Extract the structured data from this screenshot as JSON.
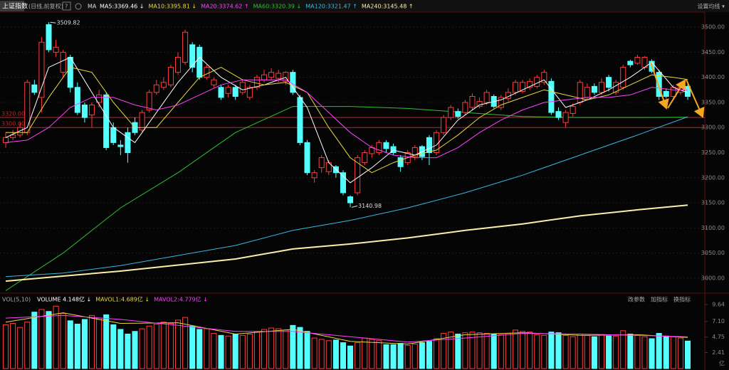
{
  "header": {
    "symbol": "上证指数",
    "period": "(日线,前复权)",
    "help": "?",
    "ma_label": "MA",
    "settings": "设置均线 ▾"
  },
  "chart_data": [
    {
      "type": "candlestick",
      "open": [
        3270,
        3280,
        3285,
        3290,
        3385,
        3360,
        3505,
        3450,
        3410,
        3440,
        3380,
        3345,
        3325,
        3350,
        3365,
        3300,
        3265,
        3290,
        3310,
        3295,
        3335,
        3370,
        3380,
        3385,
        3410,
        3430,
        3465,
        3460,
        3400,
        3385,
        3380,
        3368,
        3380,
        3370,
        3360,
        3380,
        3395,
        3400,
        3398,
        3392,
        3410,
        3360,
        3270,
        3200,
        3220,
        3212,
        3222,
        3210,
        3162,
        3170,
        3230,
        3248,
        3250,
        3270,
        3262,
        3240,
        3230,
        3242,
        3262,
        3280,
        3250,
        3290,
        3320,
        3332,
        3330,
        3340,
        3342,
        3350,
        3362,
        3340,
        3358,
        3370,
        3372,
        3380,
        3382,
        3390,
        3392,
        3332,
        3310,
        3328,
        3350,
        3360,
        3382,
        3370,
        3400,
        3370,
        3380,
        3432,
        3428,
        3420,
        3432,
        3410,
        3372,
        3362,
        3370,
        3382
      ],
      "high": [
        3290,
        3295,
        3310,
        3395,
        3395,
        3480,
        3509.82,
        3475,
        3455,
        3445,
        3390,
        3350,
        3350,
        3375,
        3370,
        3310,
        3275,
        3300,
        3320,
        3335,
        3375,
        3395,
        3400,
        3425,
        3450,
        3495,
        3470,
        3465,
        3425,
        3400,
        3385,
        3385,
        3385,
        3395,
        3385,
        3405,
        3415,
        3418,
        3415,
        3412,
        3415,
        3365,
        3275,
        3215,
        3245,
        3235,
        3225,
        3215,
        3165,
        3245,
        3255,
        3265,
        3275,
        3275,
        3268,
        3245,
        3255,
        3265,
        3265,
        3285,
        3295,
        3325,
        3345,
        3338,
        3355,
        3368,
        3360,
        3375,
        3366,
        3365,
        3378,
        3395,
        3395,
        3398,
        3405,
        3415,
        3398,
        3340,
        3335,
        3348,
        3395,
        3388,
        3388,
        3398,
        3405,
        3395,
        3425,
        3435,
        3445,
        3442,
        3436,
        3415,
        3378,
        3385,
        3388,
        3386
      ],
      "low": [
        3260,
        3275,
        3280,
        3285,
        3365,
        3330,
        3450,
        3440,
        3400,
        3370,
        3325,
        3310,
        3300,
        3340,
        3255,
        3265,
        3245,
        3230,
        3285,
        3290,
        3330,
        3365,
        3375,
        3380,
        3405,
        3425,
        3410,
        3395,
        3395,
        3380,
        3355,
        3360,
        3355,
        3365,
        3355,
        3375,
        3390,
        3395,
        3390,
        3385,
        3365,
        3265,
        3205,
        3190,
        3210,
        3205,
        3200,
        3165,
        3140.98,
        3165,
        3225,
        3240,
        3245,
        3250,
        3245,
        3212,
        3225,
        3235,
        3235,
        3225,
        3245,
        3285,
        3315,
        3318,
        3325,
        3335,
        3338,
        3345,
        3338,
        3335,
        3352,
        3365,
        3368,
        3375,
        3378,
        3385,
        3325,
        3315,
        3300,
        3322,
        3345,
        3355,
        3365,
        3365,
        3372,
        3365,
        3375,
        3420,
        3425,
        3415,
        3408,
        3355,
        3358,
        3356,
        3365,
        3355
      ],
      "close": [
        3280,
        3285,
        3300,
        3390,
        3370,
        3470,
        3455,
        3460,
        3450,
        3380,
        3330,
        3320,
        3345,
        3365,
        3260,
        3270,
        3262,
        3250,
        3290,
        3330,
        3370,
        3385,
        3390,
        3420,
        3440,
        3490,
        3420,
        3400,
        3420,
        3395,
        3360,
        3380,
        3362,
        3390,
        3380,
        3400,
        3405,
        3410,
        3408,
        3410,
        3370,
        3270,
        3210,
        3210,
        3240,
        3230,
        3210,
        3170,
        3150,
        3240,
        3250,
        3260,
        3270,
        3258,
        3250,
        3222,
        3250,
        3260,
        3242,
        3250,
        3290,
        3320,
        3340,
        3322,
        3350,
        3362,
        3352,
        3370,
        3342,
        3360,
        3370,
        3390,
        3390,
        3392,
        3400,
        3410,
        3330,
        3320,
        3330,
        3342,
        3390,
        3380,
        3370,
        3390,
        3380,
        3390,
        3420,
        3425,
        3440,
        3440,
        3412,
        3362,
        3362,
        3380,
        3380,
        3362
      ],
      "up_color": "#ff3c3c",
      "down_color": "#54ffff",
      "series": [
        {
          "name": "MA5:3369.46 ↓",
          "color": "#ffffff",
          "x": [
            0,
            3,
            6,
            9,
            12,
            15,
            18,
            21,
            24,
            27,
            30,
            33,
            36,
            39,
            42,
            45,
            48,
            51,
            54,
            57,
            60,
            63,
            66,
            69,
            72,
            75,
            78,
            81,
            84,
            87,
            90,
            93,
            95
          ],
          "values": [
            3280,
            3300,
            3420,
            3440,
            3370,
            3300,
            3270,
            3330,
            3390,
            3440,
            3400,
            3375,
            3385,
            3400,
            3340,
            3230,
            3190,
            3220,
            3255,
            3245,
            3265,
            3315,
            3345,
            3355,
            3375,
            3395,
            3340,
            3355,
            3375,
            3400,
            3430,
            3380,
            3369.46
          ]
        },
        {
          "name": "MA10:3395.81 ↓",
          "color": "#e8d840",
          "x": [
            0,
            3,
            6,
            9,
            12,
            15,
            18,
            21,
            24,
            27,
            30,
            33,
            36,
            39,
            42,
            45,
            48,
            51,
            54,
            57,
            60,
            63,
            66,
            69,
            72,
            75,
            78,
            81,
            84,
            87,
            90,
            93,
            95
          ],
          "values": [
            3290,
            3290,
            3360,
            3420,
            3410,
            3350,
            3300,
            3300,
            3350,
            3400,
            3420,
            3395,
            3385,
            3390,
            3370,
            3300,
            3240,
            3210,
            3230,
            3245,
            3255,
            3285,
            3320,
            3345,
            3360,
            3375,
            3365,
            3355,
            3365,
            3385,
            3405,
            3400,
            3395.81
          ]
        },
        {
          "name": "MA20:3374.62 ↑",
          "color": "#ff40ff",
          "x": [
            0,
            3,
            6,
            9,
            12,
            15,
            18,
            21,
            24,
            27,
            30,
            33,
            36,
            39,
            42,
            45,
            48,
            51,
            54,
            57,
            60,
            63,
            66,
            69,
            72,
            75,
            78,
            81,
            84,
            87,
            90,
            93,
            95
          ],
          "values": [
            3270,
            3275,
            3300,
            3340,
            3360,
            3360,
            3345,
            3335,
            3345,
            3365,
            3385,
            3395,
            3395,
            3395,
            3370,
            3330,
            3290,
            3260,
            3245,
            3240,
            3240,
            3260,
            3290,
            3315,
            3335,
            3350,
            3355,
            3360,
            3360,
            3365,
            3380,
            3375,
            3374.62
          ]
        },
        {
          "name": "MA60:3320.39 ↓",
          "color": "#30c030",
          "x": [
            0,
            8,
            16,
            24,
            32,
            40,
            48,
            56,
            64,
            72,
            80,
            88,
            95
          ],
          "values": [
            2975,
            3050,
            3140,
            3210,
            3290,
            3342,
            3342,
            3338,
            3330,
            3322,
            3320,
            3320,
            3320.39
          ]
        },
        {
          "name": "MA120:3321.47 ↑",
          "color": "#38b8e0",
          "x": [
            0,
            8,
            16,
            24,
            32,
            40,
            48,
            56,
            64,
            72,
            80,
            88,
            95
          ],
          "values": [
            3003,
            3010,
            3025,
            3045,
            3065,
            3095,
            3115,
            3140,
            3170,
            3205,
            3245,
            3285,
            3321.47
          ]
        },
        {
          "name": "MA240:3145.48 ↑",
          "color": "#f8f0a8",
          "x": [
            0,
            8,
            16,
            24,
            32,
            40,
            48,
            56,
            64,
            72,
            80,
            88,
            95
          ],
          "values": [
            2994,
            3004,
            3014,
            3026,
            3038,
            3058,
            3068,
            3080,
            3095,
            3108,
            3124,
            3136,
            3145.48
          ]
        }
      ],
      "levels": [
        {
          "value": 3320,
          "label": "3320.00"
        },
        {
          "value": 3300,
          "label": "3300.00"
        }
      ],
      "level_color": "#d02020",
      "ylim": [
        2970,
        3530
      ],
      "yticks": [
        {
          "value": 3000,
          "label": "3000.00"
        },
        {
          "value": 3050,
          "label": "3050.00"
        },
        {
          "value": 3100,
          "label": "3100.00"
        },
        {
          "value": 3150,
          "label": "3150.00"
        },
        {
          "value": 3200,
          "label": "3200.00"
        },
        {
          "value": 3250,
          "label": "3250.00"
        },
        {
          "value": 3300,
          "label": "3300.00"
        },
        {
          "value": 3350,
          "label": "3350.00"
        },
        {
          "value": 3400,
          "label": "3400.00"
        },
        {
          "value": 3450,
          "label": "3450.00"
        },
        {
          "value": 3500,
          "label": "3500.00"
        }
      ],
      "grid": true
    },
    {
      "type": "bar",
      "indicator": "VOL(5,10)",
      "buttons": [
        "改参数",
        "加指标",
        "换指标"
      ],
      "unit": "亿",
      "series": [
        {
          "name": "VOLUME 4.148亿 ↓",
          "color": "#ffffff",
          "values": [
            6.6,
            6.8,
            6.2,
            7.0,
            8.5,
            8.9,
            8.6,
            9.4,
            8.3,
            7.2,
            6.7,
            7.4,
            8.0,
            7.6,
            8.1,
            6.6,
            5.9,
            5.2,
            5.6,
            6.0,
            6.4,
            6.7,
            7.0,
            6.8,
            7.3,
            7.7,
            6.4,
            5.9,
            6.0,
            5.3,
            5.0,
            4.9,
            5.2,
            5.0,
            5.2,
            5.5,
            5.9,
            6.1,
            6.0,
            5.8,
            6.5,
            6.2,
            5.6,
            4.6,
            4.4,
            4.2,
            4.3,
            3.9,
            3.4,
            3.9,
            4.6,
            4.4,
            4.2,
            3.6,
            3.6,
            3.8,
            3.5,
            3.7,
            3.9,
            4.1,
            4.5,
            5.3,
            5.5,
            5.2,
            5.4,
            5.5,
            5.4,
            5.3,
            5.2,
            5.1,
            5.3,
            5.8,
            5.6,
            5.5,
            5.1,
            5.0,
            5.5,
            5.4,
            5.0,
            4.8,
            5.2,
            5.0,
            4.8,
            5.1,
            4.9,
            4.9,
            5.7,
            5.2,
            5.0,
            4.8,
            4.5,
            5.3,
            4.9,
            4.8,
            4.6,
            4.148
          ]
        },
        {
          "name": "MAVOL1:4.689亿 ↓",
          "color": "#e8d840",
          "x": [
            0,
            8,
            16,
            24,
            32,
            40,
            48,
            56,
            64,
            72,
            80,
            88,
            95
          ],
          "values": [
            7.0,
            8.4,
            6.8,
            6.9,
            5.2,
            5.9,
            4.1,
            3.7,
            5.1,
            5.4,
            5.0,
            5.1,
            4.689
          ]
        },
        {
          "name": "MAVOL2:4.779亿 ↓",
          "color": "#ff40ff",
          "x": [
            0,
            8,
            16,
            24,
            32,
            40,
            48,
            56,
            64,
            72,
            80,
            88,
            95
          ],
          "values": [
            7.6,
            8.0,
            7.4,
            6.5,
            5.6,
            5.6,
            4.8,
            4.0,
            4.6,
            5.3,
            5.2,
            5.0,
            4.779
          ]
        }
      ],
      "ylim": [
        0,
        10.5
      ],
      "yticks": [
        2.41,
        4.75,
        {
          "value": 7.1,
          "label": "7.10"
        },
        9.64
      ]
    }
  ]
}
